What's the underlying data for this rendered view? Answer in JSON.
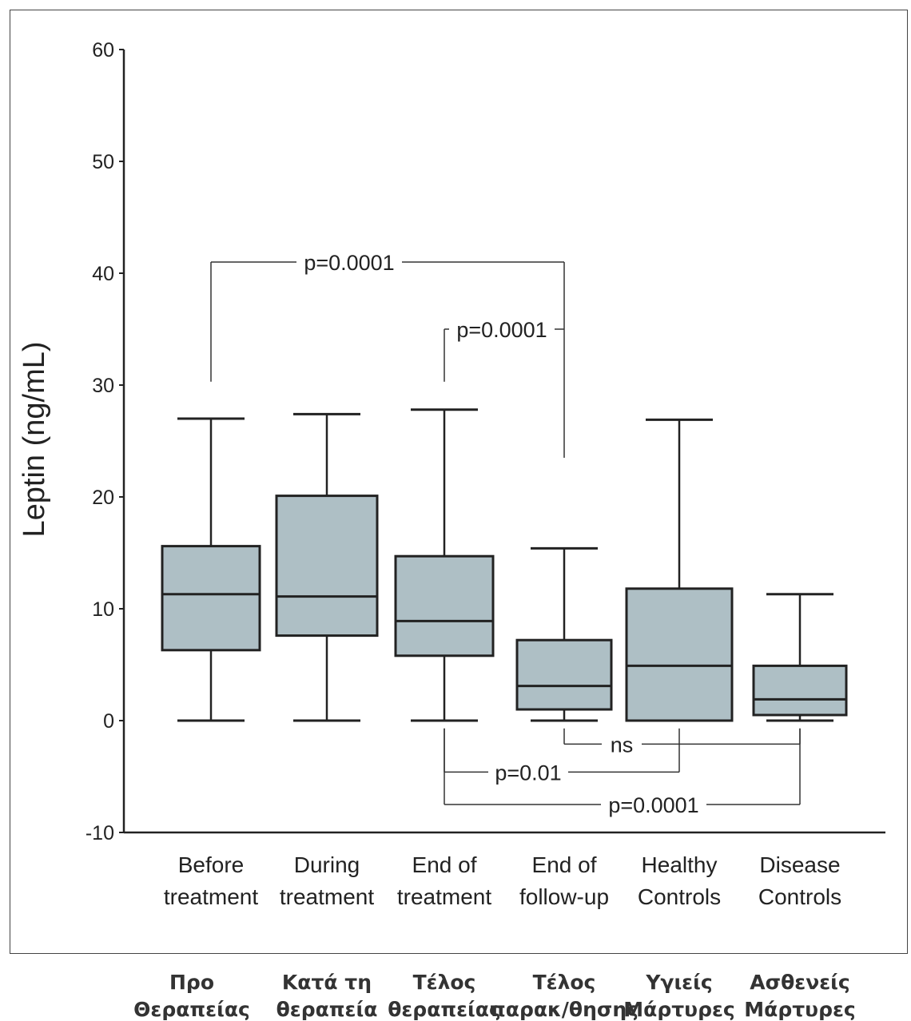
{
  "chart_data": {
    "type": "box",
    "ylabel": "Leptin (ng/mL)",
    "ylim": [
      -10,
      60
    ],
    "yticks": [
      -10,
      0,
      10,
      20,
      30,
      40,
      50,
      60
    ],
    "grid": false,
    "box_color": "#aebfc5",
    "categories": [
      {
        "label": [
          "Before",
          "treatment"
        ],
        "greek": [
          "Προ",
          "Θεραπείας"
        ]
      },
      {
        "label": [
          "During",
          "treatment"
        ],
        "greek": [
          "Κατά τη",
          "θεραπεία"
        ]
      },
      {
        "label": [
          "End of",
          "treatment"
        ],
        "greek": [
          "Τέλος",
          "θεραπείας"
        ]
      },
      {
        "label": [
          "End of",
          "follow-up"
        ],
        "greek": [
          "Τέλος",
          "παρακ/θησης"
        ]
      },
      {
        "label": [
          "Healthy",
          "Controls"
        ],
        "greek": [
          "Υγιείς",
          "Μάρτυρες"
        ]
      },
      {
        "label": [
          "Disease",
          "Controls"
        ],
        "greek": [
          "Ασθενείς",
          "Μάρτυρες"
        ]
      }
    ],
    "boxes": [
      {
        "min": 0,
        "q1": 6.3,
        "median": 11.3,
        "q3": 15.6,
        "max": 27
      },
      {
        "min": 0,
        "q1": 7.6,
        "median": 11.1,
        "q3": 20.1,
        "max": 27.4
      },
      {
        "min": 0,
        "q1": 5.8,
        "median": 8.9,
        "q3": 14.7,
        "max": 27.8
      },
      {
        "min": 0,
        "q1": 1.0,
        "median": 3.1,
        "q3": 7.2,
        "max": 15.4
      },
      {
        "min": 0,
        "q1": 0,
        "median": 4.9,
        "q3": 11.8,
        "max": 26.9
      },
      {
        "min": 0,
        "q1": 0.5,
        "median": 1.9,
        "q3": 4.9,
        "max": 11.3
      }
    ],
    "annotations": [
      {
        "text": "p=0.0001",
        "from": 0,
        "to": 3,
        "y": 41,
        "side": "above"
      },
      {
        "text": "p=0.0001",
        "from": 2,
        "to": 3,
        "y": 35,
        "side": "above"
      },
      {
        "text": "ns",
        "from": 3,
        "to": 5,
        "y": -2.1,
        "side": "below"
      },
      {
        "text": "p=0.01",
        "from": 2,
        "to": 4,
        "y": -4.6,
        "side": "below"
      },
      {
        "text": "p=0.0001",
        "from": 2,
        "to": 5,
        "y": -7.5,
        "side": "below"
      }
    ]
  }
}
